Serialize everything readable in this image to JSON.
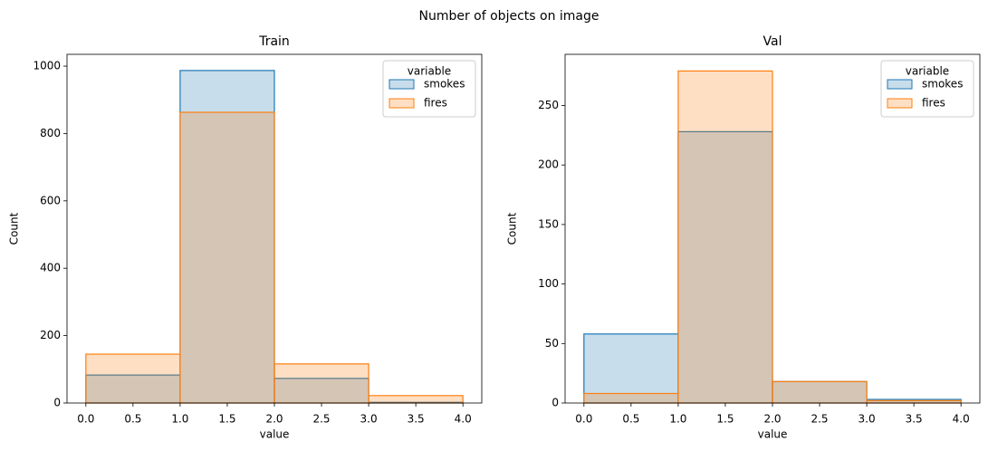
{
  "title": "Number of objects on image",
  "chart_data": [
    {
      "type": "histogram",
      "title": "Train",
      "x_label": "value",
      "y_label": "Count",
      "bins": [
        0,
        1,
        2,
        3,
        4
      ],
      "series": [
        {
          "name": "smokes",
          "color": "#1f77b4",
          "values": [
            83,
            987,
            73,
            2
          ]
        },
        {
          "name": "fires",
          "color": "#ff7f0e",
          "values": [
            145,
            863,
            116,
            22
          ]
        }
      ],
      "xlim": [
        -0.2,
        4.2
      ],
      "xticks": [
        {
          "value": 0,
          "label": "0.0"
        },
        0.5,
        {
          "value": 1,
          "label": "1.0"
        },
        1.5,
        {
          "value": 2,
          "label": "2.0"
        },
        2.5,
        {
          "value": 3,
          "label": "3.0"
        },
        3.5,
        {
          "value": 4,
          "label": "4.0"
        }
      ],
      "ylim": [
        0,
        1035
      ],
      "yticks": [
        0,
        200,
        400,
        600,
        800,
        1000
      ],
      "legend_title": "variable",
      "legend": "upper right"
    },
    {
      "type": "histogram",
      "title": "Val",
      "x_label": "value",
      "y_label": "Count",
      "bins": [
        0,
        1,
        2,
        3,
        4
      ],
      "series": [
        {
          "name": "smokes",
          "color": "#1f77b4",
          "values": [
            58,
            228,
            18,
            3
          ]
        },
        {
          "name": "fires",
          "color": "#ff7f0e",
          "values": [
            8,
            279,
            18,
            2
          ]
        }
      ],
      "xlim": [
        -0.2,
        4.2
      ],
      "xticks": [
        {
          "value": 0,
          "label": "0.0"
        },
        0.5,
        {
          "value": 1,
          "label": "1.0"
        },
        1.5,
        {
          "value": 2,
          "label": "2.0"
        },
        2.5,
        {
          "value": 3,
          "label": "3.0"
        },
        3.5,
        {
          "value": 4,
          "label": "4.0"
        }
      ],
      "ylim": [
        0,
        293
      ],
      "yticks": [
        0,
        50,
        100,
        150,
        200,
        250
      ],
      "legend_title": "variable",
      "legend": "upper right"
    }
  ]
}
